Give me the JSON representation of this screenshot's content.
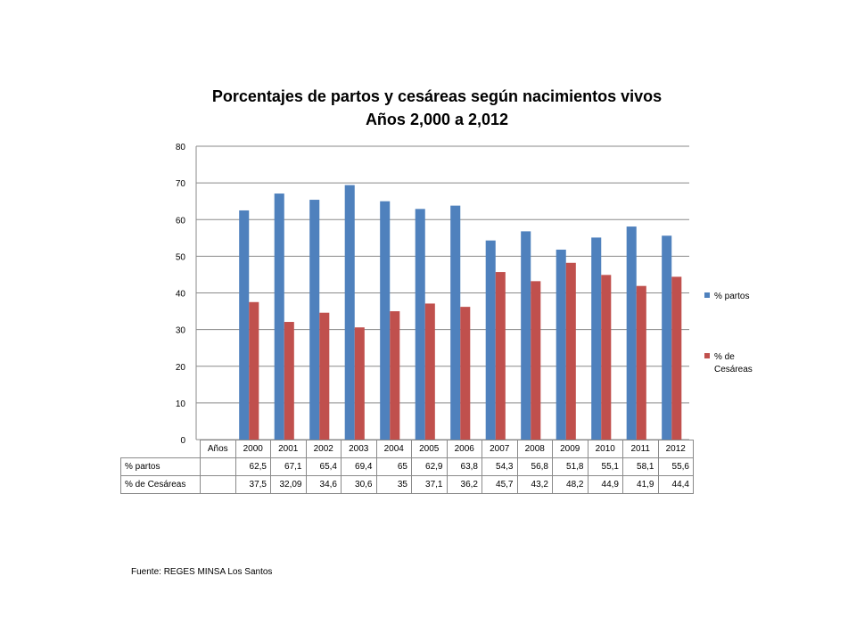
{
  "chart_data": {
    "type": "bar",
    "title": "Porcentajes de partos y cesáreas según nacimientos vivos",
    "subtitle": "Años 2,000 a 2,012",
    "category_header": "Años",
    "categories": [
      "2000",
      "2001",
      "2002",
      "2003",
      "2004",
      "2005",
      "2006",
      "2007",
      "2008",
      "2009",
      "2010",
      "2011",
      "2012"
    ],
    "ylim": [
      0,
      80
    ],
    "yticks": [
      0,
      10,
      20,
      30,
      40,
      50,
      60,
      70,
      80
    ],
    "grid": true,
    "legend_position": "right",
    "series": [
      {
        "name": "% partos",
        "legend_label": "% partos",
        "color": "#4F81BD",
        "values": [
          62.5,
          67.1,
          65.4,
          69.4,
          65,
          62.9,
          63.8,
          54.3,
          56.8,
          51.8,
          55.1,
          58.1,
          55.6
        ],
        "labels": [
          "62,5",
          "67,1",
          "65,4",
          "69,4",
          "65",
          "62,9",
          "63,8",
          "54,3",
          "56,8",
          "51,8",
          "55,1",
          "58,1",
          "55,6"
        ]
      },
      {
        "name": "% de Cesáreas",
        "legend_label": [
          "% de",
          "Cesáreas"
        ],
        "color": "#C0504D",
        "values": [
          37.5,
          32.09,
          34.6,
          30.6,
          35,
          37.1,
          36.2,
          45.7,
          43.2,
          48.2,
          44.9,
          41.9,
          44.4
        ],
        "labels": [
          "37,5",
          "32,09",
          "34,6",
          "30,6",
          "35",
          "37,1",
          "36,2",
          "45,7",
          "43,2",
          "48,2",
          "44,9",
          "41,9",
          "44,4"
        ]
      }
    ]
  },
  "source": "Fuente:  REGES  MINSA  Los Santos"
}
